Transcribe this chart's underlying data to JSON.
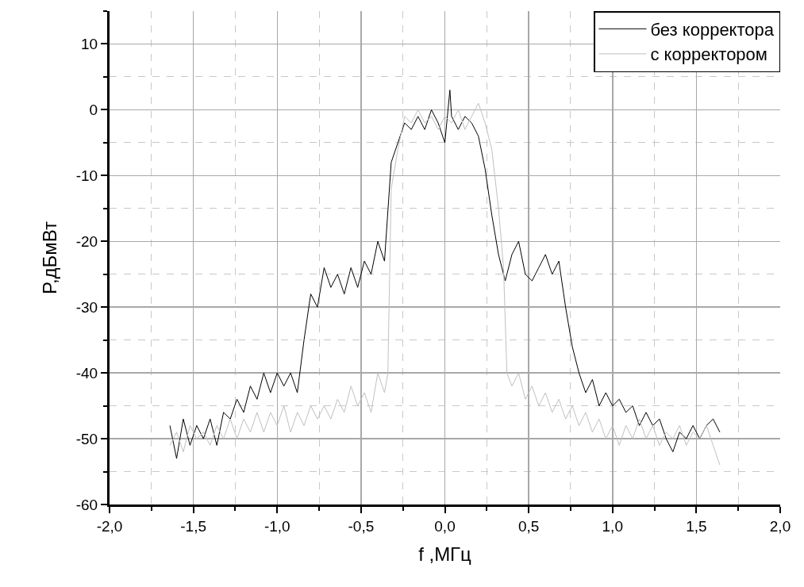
{
  "chart_data": {
    "type": "line",
    "xlabel": "f ,МГц",
    "ylabel": "P,дБмВт",
    "xlim": [
      -2,
      2
    ],
    "ylim": [
      -60,
      15
    ],
    "xticks": [
      {
        "value": -2,
        "label": "-2,0"
      },
      {
        "value": -1.75,
        "label": null
      },
      {
        "value": -1.5,
        "label": "-1,5"
      },
      {
        "value": -1.25,
        "label": null
      },
      {
        "value": -1,
        "label": "-1,0"
      },
      {
        "value": -0.75,
        "label": null
      },
      {
        "value": -0.5,
        "label": "-0,5"
      },
      {
        "value": -0.25,
        "label": null
      },
      {
        "value": 0,
        "label": "0,0"
      },
      {
        "value": 0.25,
        "label": null
      },
      {
        "value": 0.5,
        "label": "0,5"
      },
      {
        "value": 0.75,
        "label": null
      },
      {
        "value": 1,
        "label": "1,0"
      },
      {
        "value": 1.25,
        "label": null
      },
      {
        "value": 1.5,
        "label": "1,5"
      },
      {
        "value": 1.75,
        "label": null
      },
      {
        "value": 2,
        "label": "2,0"
      }
    ],
    "yticks": [
      -60,
      {
        "value": -55,
        "label": null
      },
      -50,
      {
        "value": -45,
        "label": null
      },
      -40,
      {
        "value": -35,
        "label": null
      },
      -30,
      {
        "value": -25,
        "label": null
      },
      -20,
      {
        "value": -15,
        "label": null
      },
      -10,
      {
        "value": -5,
        "label": null
      },
      0,
      {
        "value": 5,
        "label": null
      },
      10,
      {
        "value": 15,
        "label": null
      }
    ],
    "grid": true,
    "legend": "top right",
    "line_style": "solid",
    "marker": "none",
    "series": [
      {
        "name": "без корректора",
        "color": "#000000",
        "x": [
          -1.64,
          -1.6,
          -1.56,
          -1.52,
          -1.48,
          -1.44,
          -1.4,
          -1.36,
          -1.32,
          -1.28,
          -1.24,
          -1.2,
          -1.16,
          -1.12,
          -1.08,
          -1.04,
          -1,
          -0.96,
          -0.92,
          -0.88,
          -0.84,
          -0.8,
          -0.76,
          -0.72,
          -0.68,
          -0.64,
          -0.6,
          -0.56,
          -0.52,
          -0.48,
          -0.44,
          -0.4,
          -0.36,
          -0.32,
          -0.28,
          -0.24,
          -0.2,
          -0.16,
          -0.12,
          -0.08,
          -0.04,
          0,
          0.03,
          0.04,
          0.08,
          0.12,
          0.16,
          0.2,
          0.24,
          0.28,
          0.32,
          0.36,
          0.4,
          0.44,
          0.48,
          0.52,
          0.56,
          0.6,
          0.64,
          0.68,
          0.72,
          0.76,
          0.8,
          0.84,
          0.88,
          0.92,
          0.96,
          1,
          1.04,
          1.08,
          1.12,
          1.16,
          1.2,
          1.24,
          1.28,
          1.32,
          1.36,
          1.4,
          1.44,
          1.48,
          1.52,
          1.56,
          1.6,
          1.64
        ],
        "values": [
          -48,
          -53,
          -47,
          -51,
          -48,
          -50,
          -47,
          -51,
          -46,
          -47,
          -44,
          -46,
          -42,
          -44,
          -40,
          -43,
          -40,
          -42,
          -40,
          -43,
          -35,
          -28,
          -30,
          -24,
          -27,
          -25,
          -28,
          -24,
          -27,
          -23,
          -25,
          -20,
          -23,
          -8,
          -5,
          -2,
          -3,
          -1,
          -3,
          0,
          -2,
          -5,
          3,
          -1,
          -3,
          -1,
          -2,
          -4,
          -9,
          -16,
          -22,
          -26,
          -22,
          -20,
          -25,
          -26,
          -24,
          -22,
          -25,
          -23,
          -30,
          -36,
          -40,
          -43,
          -41,
          -45,
          -43,
          -45,
          -44,
          -46,
          -45,
          -48,
          -46,
          -48,
          -47,
          -50,
          -52,
          -49,
          -50,
          -48,
          -50,
          -48,
          -47,
          -49
        ]
      },
      {
        "name": "с корректором",
        "color": "#c0c0c0",
        "x": [
          -1.64,
          -1.6,
          -1.56,
          -1.52,
          -1.48,
          -1.44,
          -1.4,
          -1.36,
          -1.32,
          -1.28,
          -1.24,
          -1.2,
          -1.16,
          -1.12,
          -1.08,
          -1.04,
          -1,
          -0.96,
          -0.92,
          -0.88,
          -0.84,
          -0.8,
          -0.76,
          -0.72,
          -0.68,
          -0.64,
          -0.6,
          -0.56,
          -0.52,
          -0.48,
          -0.44,
          -0.4,
          -0.36,
          -0.34,
          -0.32,
          -0.28,
          -0.24,
          -0.2,
          -0.16,
          -0.12,
          -0.08,
          -0.04,
          0,
          0.04,
          0.08,
          0.12,
          0.16,
          0.2,
          0.24,
          0.28,
          0.32,
          0.35,
          0.37,
          0.4,
          0.44,
          0.48,
          0.52,
          0.56,
          0.6,
          0.64,
          0.68,
          0.72,
          0.76,
          0.8,
          0.84,
          0.88,
          0.92,
          0.96,
          1,
          1.04,
          1.08,
          1.12,
          1.16,
          1.2,
          1.24,
          1.28,
          1.32,
          1.36,
          1.4,
          1.44,
          1.48,
          1.52,
          1.56,
          1.6,
          1.64
        ],
        "values": [
          -51,
          -49,
          -52,
          -48,
          -50,
          -49,
          -51,
          -48,
          -50,
          -47,
          -50,
          -47,
          -49,
          -46,
          -49,
          -46,
          -48,
          -45,
          -49,
          -46,
          -48,
          -45,
          -47,
          -45,
          -47,
          -44,
          -46,
          -42,
          -45,
          -43,
          -46,
          -40,
          -43,
          -40,
          -12,
          -6,
          -1,
          -2,
          0,
          -2,
          -1,
          -3,
          -1,
          -2,
          0,
          -3,
          -1,
          1,
          -2,
          -6,
          -15,
          -24,
          -40,
          -42,
          -40,
          -44,
          -42,
          -45,
          -43,
          -46,
          -44,
          -47,
          -45,
          -48,
          -46,
          -49,
          -47,
          -50,
          -48,
          -51,
          -48,
          -50,
          -47,
          -50,
          -48,
          -51,
          -49,
          -50,
          -48,
          -51,
          -49,
          -50,
          -48,
          -51,
          -54
        ]
      }
    ]
  }
}
